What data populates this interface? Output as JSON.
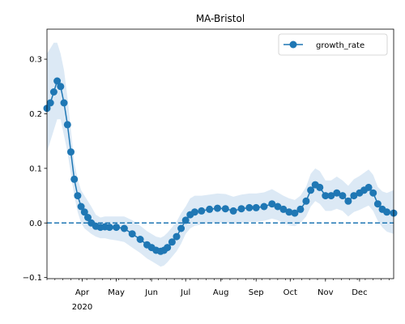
{
  "chart_data": {
    "type": "line",
    "title": "MA-Bristol",
    "xlabel": "",
    "ylabel": "",
    "x_range": [
      "2020-03-01",
      "2020-12-31"
    ],
    "ylim": [
      -0.102,
      0.355
    ],
    "y_ticks": [
      -0.1,
      0.0,
      0.1,
      0.2,
      0.3
    ],
    "y_tick_labels": [
      "−0.1",
      "0.0",
      "0.1",
      "0.2",
      "0.3"
    ],
    "x_ticks": [
      {
        "date": "2020-04-01",
        "label": "Apr",
        "sublabel": "2020"
      },
      {
        "date": "2020-05-01",
        "label": "May"
      },
      {
        "date": "2020-06-01",
        "label": "Jun"
      },
      {
        "date": "2020-07-01",
        "label": "Jul"
      },
      {
        "date": "2020-08-01",
        "label": "Aug"
      },
      {
        "date": "2020-09-01",
        "label": "Sep"
      },
      {
        "date": "2020-10-01",
        "label": "Oct"
      },
      {
        "date": "2020-11-01",
        "label": "Nov"
      },
      {
        "date": "2020-12-01",
        "label": "Dec"
      }
    ],
    "legend": {
      "position": "top-right",
      "entries": [
        "growth_rate"
      ]
    },
    "grid": false,
    "reference_line": {
      "y": 0.0,
      "style": "dashed"
    },
    "colors": {
      "series": "#1f77b4",
      "band": "#dce9f5"
    },
    "series": [
      {
        "name": "growth_rate",
        "x": [
          "2020-03-01",
          "2020-03-04",
          "2020-03-07",
          "2020-03-10",
          "2020-03-13",
          "2020-03-16",
          "2020-03-19",
          "2020-03-22",
          "2020-03-25",
          "2020-03-28",
          "2020-03-31",
          "2020-04-03",
          "2020-04-06",
          "2020-04-09",
          "2020-04-13",
          "2020-04-17",
          "2020-04-21",
          "2020-04-25",
          "2020-05-01",
          "2020-05-08",
          "2020-05-15",
          "2020-05-22",
          "2020-05-28",
          "2020-06-01",
          "2020-06-05",
          "2020-06-09",
          "2020-06-12",
          "2020-06-15",
          "2020-06-19",
          "2020-06-23",
          "2020-06-27",
          "2020-07-01",
          "2020-07-05",
          "2020-07-09",
          "2020-07-15",
          "2020-07-22",
          "2020-07-29",
          "2020-08-05",
          "2020-08-12",
          "2020-08-19",
          "2020-08-26",
          "2020-09-01",
          "2020-09-08",
          "2020-09-15",
          "2020-09-20",
          "2020-09-25",
          "2020-09-30",
          "2020-10-05",
          "2020-10-10",
          "2020-10-15",
          "2020-10-19",
          "2020-10-23",
          "2020-10-27",
          "2020-11-01",
          "2020-11-06",
          "2020-11-11",
          "2020-11-16",
          "2020-11-21",
          "2020-11-26",
          "2020-12-01",
          "2020-12-05",
          "2020-12-09",
          "2020-12-13",
          "2020-12-17",
          "2020-12-21",
          "2020-12-25",
          "2020-12-31"
        ],
        "y": [
          0.21,
          0.22,
          0.24,
          0.26,
          0.25,
          0.22,
          0.18,
          0.13,
          0.08,
          0.05,
          0.03,
          0.02,
          0.01,
          0.0,
          -0.006,
          -0.008,
          -0.007,
          -0.008,
          -0.008,
          -0.01,
          -0.02,
          -0.03,
          -0.04,
          -0.045,
          -0.05,
          -0.052,
          -0.05,
          -0.045,
          -0.035,
          -0.025,
          -0.01,
          0.005,
          0.015,
          0.02,
          0.022,
          0.025,
          0.027,
          0.026,
          0.022,
          0.026,
          0.028,
          0.028,
          0.03,
          0.035,
          0.03,
          0.025,
          0.02,
          0.018,
          0.025,
          0.04,
          0.06,
          0.07,
          0.065,
          0.05,
          0.05,
          0.055,
          0.05,
          0.04,
          0.05,
          0.055,
          0.06,
          0.065,
          0.055,
          0.035,
          0.025,
          0.02,
          0.018
        ],
        "band_lower": [
          0.13,
          0.15,
          0.17,
          0.19,
          0.19,
          0.16,
          0.13,
          0.09,
          0.05,
          0.02,
          0.0,
          -0.01,
          -0.015,
          -0.02,
          -0.025,
          -0.028,
          -0.028,
          -0.03,
          -0.032,
          -0.035,
          -0.045,
          -0.055,
          -0.065,
          -0.07,
          -0.075,
          -0.08,
          -0.078,
          -0.072,
          -0.062,
          -0.052,
          -0.038,
          -0.02,
          -0.01,
          -0.005,
          -0.003,
          0.0,
          0.0,
          0.0,
          -0.002,
          0.0,
          0.002,
          0.002,
          0.004,
          0.008,
          0.005,
          0.0,
          -0.004,
          -0.006,
          0.0,
          0.012,
          0.03,
          0.04,
          0.035,
          0.022,
          0.022,
          0.026,
          0.022,
          0.012,
          0.02,
          0.024,
          0.028,
          0.032,
          0.022,
          0.004,
          -0.008,
          -0.016,
          -0.02
        ],
        "band_upper": [
          0.31,
          0.32,
          0.33,
          0.33,
          0.31,
          0.28,
          0.23,
          0.17,
          0.11,
          0.08,
          0.06,
          0.05,
          0.04,
          0.03,
          0.015,
          0.01,
          0.012,
          0.012,
          0.012,
          0.012,
          0.005,
          -0.005,
          -0.015,
          -0.02,
          -0.025,
          -0.027,
          -0.024,
          -0.018,
          -0.008,
          0.002,
          0.018,
          0.03,
          0.045,
          0.05,
          0.05,
          0.052,
          0.054,
          0.053,
          0.048,
          0.052,
          0.054,
          0.054,
          0.056,
          0.062,
          0.056,
          0.05,
          0.045,
          0.042,
          0.05,
          0.066,
          0.09,
          0.1,
          0.095,
          0.078,
          0.078,
          0.085,
          0.078,
          0.068,
          0.08,
          0.086,
          0.092,
          0.098,
          0.088,
          0.066,
          0.058,
          0.055,
          0.06
        ]
      }
    ]
  }
}
